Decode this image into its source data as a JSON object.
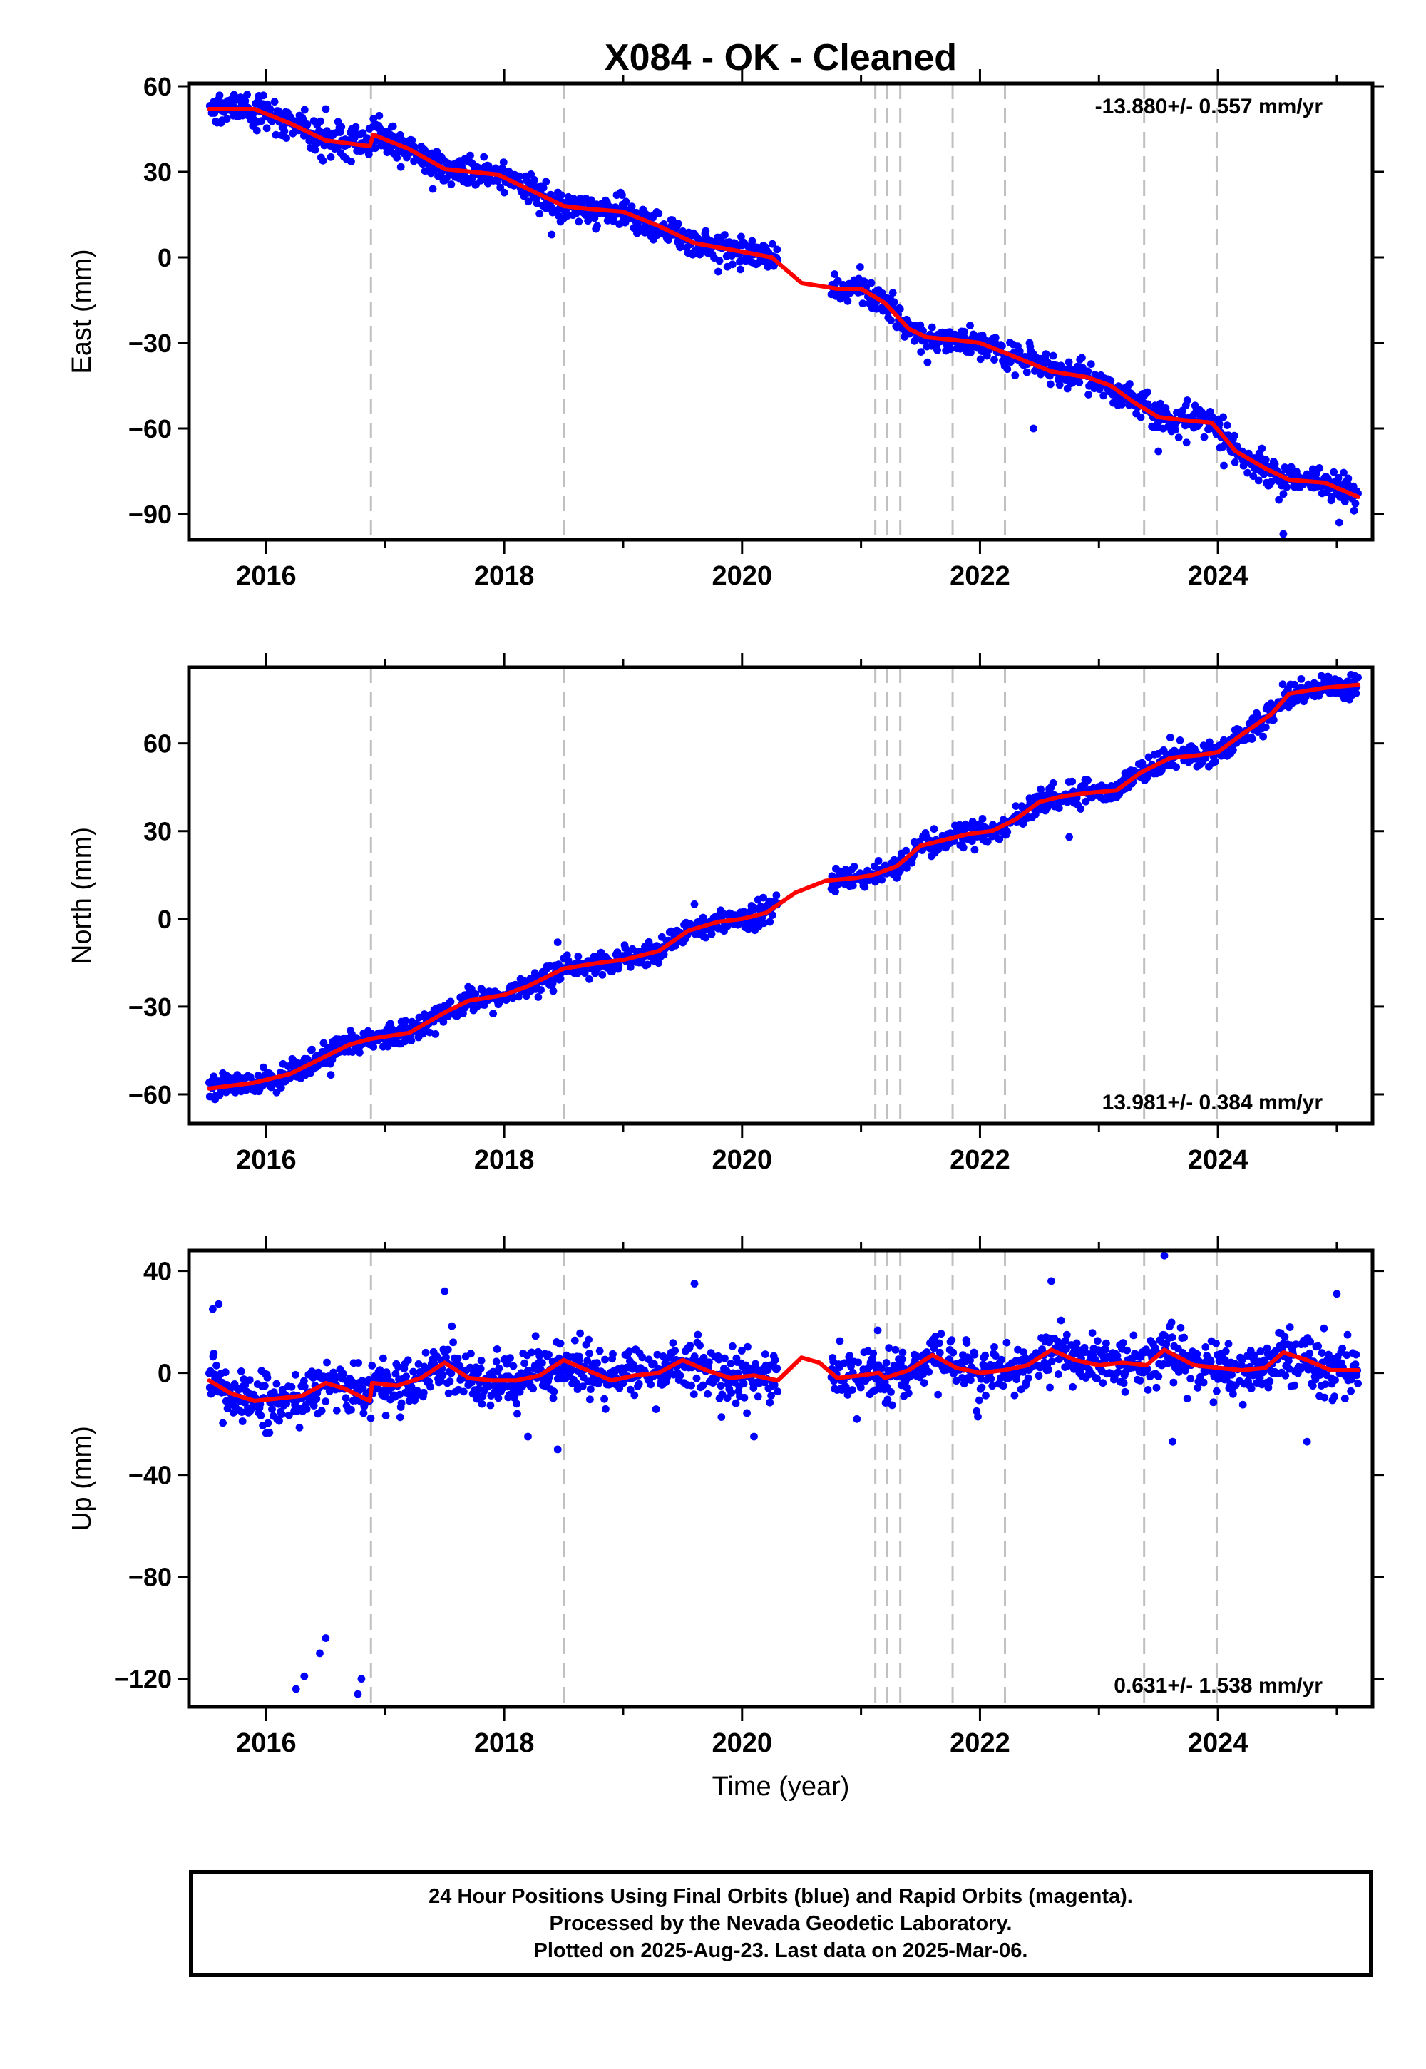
{
  "title": "X084  - OK - Cleaned",
  "x_axis_label": "Time (year)",
  "footer": {
    "line1": "24 Hour Positions Using Final Orbits (blue) and Rapid Orbits (magenta).",
    "line2": "Processed by the Nevada Geodetic Laboratory.",
    "line3": "Plotted on 2025-Aug-23. Last data on 2025-Mar-06."
  },
  "colors": {
    "data_points": "#0000ff",
    "model_line": "#ff0000",
    "steps": "#c0c0c0",
    "frame": "#000000"
  },
  "chart_data": [
    {
      "type": "scatter",
      "title": "X084  - OK - Cleaned",
      "xlabel": "",
      "ylabel": "East (mm)",
      "rate_label": "-13.880+/- 0.557 mm/yr",
      "rate_position": "top-right",
      "xlim": [
        2015.35,
        2025.3
      ],
      "ylim": [
        -99,
        61
      ],
      "xticks": [
        2016,
        2018,
        2020,
        2022,
        2024
      ],
      "yticks": [
        -90,
        -60,
        -30,
        0,
        30,
        60
      ],
      "ytick_labels": [
        "−90",
        "−60",
        "−30",
        "0",
        "30",
        "60"
      ],
      "data_range": [
        2015.52,
        2025.18
      ],
      "gap": [
        2020.3,
        2020.75
      ],
      "noise_sigma": 2.6,
      "outliers": [
        [
          2016.5,
          52
        ],
        [
          2017.4,
          24
        ],
        [
          2018.4,
          8
        ],
        [
          2019.8,
          -5
        ],
        [
          2022.45,
          -60
        ],
        [
          2023.5,
          -68
        ],
        [
          2024.05,
          -73
        ],
        [
          2024.55,
          -97
        ],
        [
          2025.02,
          -93
        ]
      ],
      "step_lines": [
        2016.88,
        2018.5,
        2021.12,
        2021.22,
        2021.33,
        2021.77,
        2022.21,
        2023.38,
        2023.99
      ],
      "model": [
        [
          2015.52,
          52
        ],
        [
          2015.9,
          52
        ],
        [
          2016.2,
          47
        ],
        [
          2016.5,
          41
        ],
        [
          2016.87,
          39
        ],
        [
          2016.9,
          43
        ],
        [
          2017.2,
          38
        ],
        [
          2017.5,
          31
        ],
        [
          2017.95,
          29
        ],
        [
          2018.2,
          24
        ],
        [
          2018.5,
          18
        ],
        [
          2018.7,
          17
        ],
        [
          2019.0,
          16
        ],
        [
          2019.3,
          11
        ],
        [
          2019.6,
          5
        ],
        [
          2020.0,
          2
        ],
        [
          2020.25,
          0
        ],
        [
          2020.5,
          -9
        ],
        [
          2020.8,
          -11
        ],
        [
          2021.0,
          -11
        ],
        [
          2021.2,
          -16
        ],
        [
          2021.4,
          -25
        ],
        [
          2021.55,
          -28
        ],
        [
          2021.8,
          -29
        ],
        [
          2022.0,
          -30
        ],
        [
          2022.3,
          -35
        ],
        [
          2022.6,
          -40
        ],
        [
          2022.9,
          -42
        ],
        [
          2023.1,
          -45
        ],
        [
          2023.3,
          -51
        ],
        [
          2023.5,
          -56
        ],
        [
          2023.7,
          -57
        ],
        [
          2023.95,
          -58
        ],
        [
          2024.15,
          -68
        ],
        [
          2024.4,
          -74
        ],
        [
          2024.6,
          -78
        ],
        [
          2024.9,
          -79
        ],
        [
          2025.18,
          -84
        ]
      ]
    },
    {
      "type": "scatter",
      "xlabel": "",
      "ylabel": "North (mm)",
      "rate_label": "13.981+/- 0.384 mm/yr",
      "rate_position": "bottom-right",
      "xlim": [
        2015.35,
        2025.3
      ],
      "ylim": [
        -70,
        86
      ],
      "xticks": [
        2016,
        2018,
        2020,
        2022,
        2024
      ],
      "yticks": [
        -60,
        -30,
        0,
        30,
        60
      ],
      "ytick_labels": [
        "−60",
        "−30",
        "0",
        "30",
        "60"
      ],
      "data_range": [
        2015.52,
        2025.18
      ],
      "gap": [
        2020.3,
        2020.75
      ],
      "noise_sigma": 2.0,
      "outliers": [
        [
          2017.4,
          -34
        ],
        [
          2018.45,
          -8
        ],
        [
          2019.6,
          5
        ],
        [
          2021.3,
          14
        ],
        [
          2022.55,
          37
        ],
        [
          2022.75,
          28
        ],
        [
          2023.6,
          62
        ],
        [
          2024.7,
          82
        ]
      ],
      "step_lines": [
        2016.88,
        2018.5,
        2021.12,
        2021.22,
        2021.33,
        2021.77,
        2022.21,
        2023.38,
        2023.99
      ],
      "model": [
        [
          2015.52,
          -58
        ],
        [
          2015.9,
          -56
        ],
        [
          2016.2,
          -53
        ],
        [
          2016.5,
          -47
        ],
        [
          2016.7,
          -43
        ],
        [
          2016.88,
          -41
        ],
        [
          2017.2,
          -39
        ],
        [
          2017.5,
          -32
        ],
        [
          2017.7,
          -28
        ],
        [
          2018.0,
          -26
        ],
        [
          2018.2,
          -23
        ],
        [
          2018.5,
          -17
        ],
        [
          2018.8,
          -15
        ],
        [
          2019.0,
          -14
        ],
        [
          2019.3,
          -11
        ],
        [
          2019.55,
          -4
        ],
        [
          2019.8,
          -1
        ],
        [
          2020.0,
          0
        ],
        [
          2020.2,
          2
        ],
        [
          2020.45,
          9
        ],
        [
          2020.7,
          13
        ],
        [
          2020.95,
          14
        ],
        [
          2021.1,
          15
        ],
        [
          2021.3,
          18
        ],
        [
          2021.5,
          25
        ],
        [
          2021.7,
          27
        ],
        [
          2021.9,
          29
        ],
        [
          2022.1,
          30
        ],
        [
          2022.3,
          34
        ],
        [
          2022.5,
          40
        ],
        [
          2022.7,
          42
        ],
        [
          2022.9,
          43
        ],
        [
          2023.15,
          44
        ],
        [
          2023.35,
          50
        ],
        [
          2023.6,
          55
        ],
        [
          2023.85,
          56
        ],
        [
          2024.0,
          57
        ],
        [
          2024.2,
          63
        ],
        [
          2024.45,
          70
        ],
        [
          2024.6,
          77
        ],
        [
          2024.9,
          79
        ],
        [
          2025.18,
          80
        ]
      ]
    },
    {
      "type": "scatter",
      "xlabel": "Time (year)",
      "ylabel": "Up (mm)",
      "rate_label": "0.631+/- 1.538 mm/yr",
      "rate_position": "bottom-right",
      "xlim": [
        2015.35,
        2025.3
      ],
      "ylim": [
        -131,
        48
      ],
      "xticks": [
        2016,
        2018,
        2020,
        2022,
        2024
      ],
      "yticks": [
        -120,
        -80,
        -40,
        0,
        40
      ],
      "ytick_labels": [
        "−120",
        "−80",
        "−40",
        "0",
        "40"
      ],
      "data_range": [
        2015.52,
        2025.18
      ],
      "gap": [
        2020.3,
        2020.75
      ],
      "noise_sigma": 5.0,
      "outliers": [
        [
          2015.55,
          25
        ],
        [
          2015.6,
          27
        ],
        [
          2016.25,
          -124
        ],
        [
          2016.32,
          -119
        ],
        [
          2016.45,
          -110
        ],
        [
          2016.5,
          -104
        ],
        [
          2016.77,
          -126
        ],
        [
          2016.8,
          -120
        ],
        [
          2017.5,
          32
        ],
        [
          2018.2,
          -25
        ],
        [
          2018.45,
          -30
        ],
        [
          2019.6,
          35
        ],
        [
          2020.1,
          -25
        ],
        [
          2022.6,
          36
        ],
        [
          2023.55,
          46
        ],
        [
          2023.62,
          -27
        ],
        [
          2024.75,
          -27
        ],
        [
          2025.0,
          31
        ]
      ],
      "step_lines": [
        2016.88,
        2018.5,
        2021.12,
        2021.22,
        2021.33,
        2021.77,
        2022.21,
        2023.38,
        2023.99
      ],
      "model": [
        [
          2015.52,
          -3
        ],
        [
          2015.7,
          -8
        ],
        [
          2015.9,
          -11
        ],
        [
          2016.1,
          -10
        ],
        [
          2016.3,
          -9
        ],
        [
          2016.5,
          -4
        ],
        [
          2016.65,
          -6
        ],
        [
          2016.87,
          -11
        ],
        [
          2016.89,
          -4
        ],
        [
          2017.1,
          -5
        ],
        [
          2017.3,
          -2
        ],
        [
          2017.5,
          4
        ],
        [
          2017.7,
          -2
        ],
        [
          2017.9,
          -3
        ],
        [
          2018.1,
          -3
        ],
        [
          2018.3,
          -1
        ],
        [
          2018.5,
          5
        ],
        [
          2018.7,
          1
        ],
        [
          2018.9,
          -3
        ],
        [
          2019.1,
          -1
        ],
        [
          2019.3,
          0
        ],
        [
          2019.5,
          5
        ],
        [
          2019.7,
          1
        ],
        [
          2019.9,
          -2
        ],
        [
          2020.1,
          -1
        ],
        [
          2020.3,
          -3
        ],
        [
          2020.5,
          6
        ],
        [
          2020.65,
          4
        ],
        [
          2020.8,
          -2
        ],
        [
          2021.0,
          -1
        ],
        [
          2021.15,
          0
        ],
        [
          2021.2,
          -2
        ],
        [
          2021.4,
          1
        ],
        [
          2021.6,
          7
        ],
        [
          2021.8,
          2
        ],
        [
          2022.0,
          0
        ],
        [
          2022.2,
          1
        ],
        [
          2022.4,
          3
        ],
        [
          2022.6,
          9
        ],
        [
          2022.8,
          5
        ],
        [
          2023.0,
          3
        ],
        [
          2023.2,
          4
        ],
        [
          2023.4,
          3
        ],
        [
          2023.55,
          9
        ],
        [
          2023.8,
          3
        ],
        [
          2024.0,
          2
        ],
        [
          2024.2,
          1
        ],
        [
          2024.4,
          2
        ],
        [
          2024.55,
          8
        ],
        [
          2024.75,
          5
        ],
        [
          2024.95,
          1
        ],
        [
          2025.18,
          1
        ]
      ]
    }
  ]
}
